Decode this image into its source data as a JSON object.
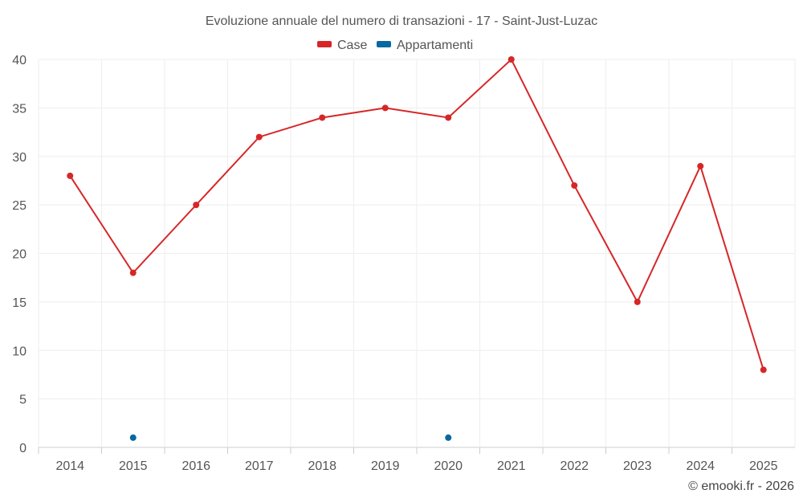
{
  "chart_data": {
    "type": "line",
    "title": "Evoluzione annuale del numero di transazioni - 17 - Saint-Just-Luzac",
    "categories": [
      "2014",
      "2015",
      "2016",
      "2017",
      "2018",
      "2019",
      "2020",
      "2021",
      "2022",
      "2023",
      "2024",
      "2025"
    ],
    "series": [
      {
        "name": "Case",
        "color": "#d62728",
        "values": [
          28,
          18,
          25,
          32,
          34,
          35,
          34,
          40,
          27,
          15,
          29,
          8
        ]
      },
      {
        "name": "Appartamenti",
        "color": "#0868a0",
        "values": [
          null,
          1,
          null,
          null,
          null,
          null,
          1,
          null,
          null,
          null,
          null,
          null
        ]
      }
    ],
    "ylim": [
      0,
      40
    ],
    "yticks": [
      0,
      5,
      10,
      15,
      20,
      25,
      30,
      35,
      40
    ],
    "grid": true,
    "legend_position": "top-center",
    "xlabel": "",
    "ylabel": ""
  },
  "credit": "© emooki.fr - 2026"
}
